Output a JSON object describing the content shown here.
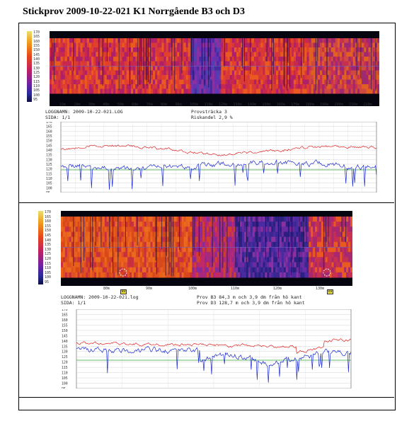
{
  "document": {
    "title": "Stickprov 2009-10-22-021 K1 Norrgående B3 och D3"
  },
  "panel1": {
    "thermal_scale": [
      "170",
      "165",
      "160",
      "155",
      "150",
      "145",
      "140",
      "135",
      "130",
      "125",
      "120",
      "115",
      "110",
      "105",
      "100",
      "95"
    ],
    "distance_ticks": [
      "10m",
      "20m",
      "30m",
      "40m",
      "50m",
      "60m",
      "70m",
      "80m",
      "90m",
      "100m",
      "110m",
      "120m",
      "130m",
      "140m",
      "150m",
      "160m",
      "170m",
      "180m",
      "190m",
      "200m",
      "210m",
      "220m"
    ],
    "info": {
      "loggnamn": "LOGGNAMN: 2009-10-22-021.LOG",
      "sida": "SIDA:  1/1",
      "provstracka": "Provsträcka 3",
      "riskandel": "Riskandel 2,9 %"
    },
    "temp_axis": [
      "170",
      "165",
      "160",
      "155",
      "150",
      "145",
      "140",
      "135",
      "130",
      "125",
      "120",
      "115",
      "110",
      "105",
      "100",
      "95"
    ]
  },
  "panel2": {
    "thermal_scale": [
      "170",
      "165",
      "160",
      "155",
      "150",
      "145",
      "140",
      "135",
      "130",
      "125",
      "120",
      "115",
      "110",
      "105",
      "100",
      "95"
    ],
    "distance_ticks": [
      "80m",
      "90m",
      "100m",
      "110m",
      "120m",
      "130m"
    ],
    "markers": [
      "B3",
      "D3"
    ],
    "info": {
      "loggnamn": "LOGGNAMN: 2009-10-22-021.log",
      "sida": "SIDA:  1/1",
      "prov_b3": "Prov B3 84,3 m och 3,9 dm från hö kant",
      "prov_d3": "Prov D3 128,7 m och 3,9 dm från hö kant"
    },
    "temp_axis": [
      "170",
      "165",
      "160",
      "155",
      "150",
      "145",
      "140",
      "135",
      "130",
      "125",
      "120",
      "115",
      "110",
      "105",
      "100",
      "95"
    ]
  }
}
